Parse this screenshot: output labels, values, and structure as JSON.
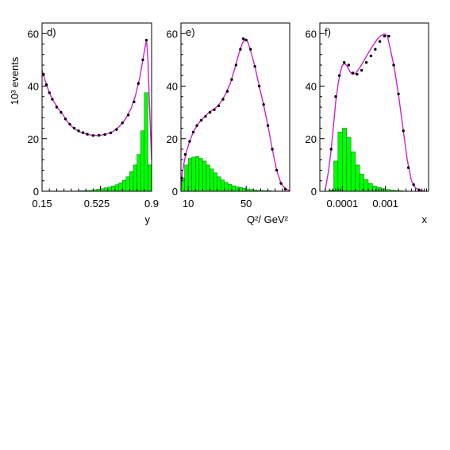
{
  "colors": {
    "curve": "#cc22cc",
    "points": "#000000",
    "histogram_fill": "#00ff00",
    "histogram_edge": "#006600",
    "axis": "#000000"
  },
  "shared_ylabel": "10³ events",
  "chart_data": [
    {
      "type": "line",
      "panel_label": "d)",
      "xlabel": "y",
      "x_scale": "linear",
      "xlim": [
        0.15,
        0.9
      ],
      "ylim": [
        0,
        64
      ],
      "xticks": [
        {
          "value": 0.15,
          "label": "0.15"
        },
        {
          "value": 0.525,
          "label": "0.525"
        },
        {
          "value": 0.9,
          "label": "0.9"
        }
      ],
      "yticks": [
        {
          "value": 0,
          "label": "0"
        },
        {
          "value": 20,
          "label": "20"
        },
        {
          "value": 40,
          "label": "40"
        },
        {
          "value": 60,
          "label": "60"
        }
      ],
      "series": [
        {
          "kind": "points",
          "x": [
            0.16,
            0.18,
            0.2,
            0.22,
            0.25,
            0.28,
            0.31,
            0.34,
            0.37,
            0.4,
            0.43,
            0.46,
            0.5,
            0.54,
            0.58,
            0.62,
            0.66,
            0.7,
            0.74,
            0.78,
            0.81,
            0.84,
            0.865
          ],
          "y": [
            44.5,
            40.5,
            37.5,
            35,
            32,
            30,
            27.5,
            25.5,
            24,
            23,
            22.3,
            21.7,
            21.2,
            21.3,
            21.6,
            22.2,
            23.5,
            26,
            29,
            34,
            41,
            50,
            57.5
          ]
        },
        {
          "kind": "curve",
          "x": [
            0.15,
            0.17,
            0.19,
            0.21,
            0.23,
            0.26,
            0.29,
            0.32,
            0.35,
            0.38,
            0.41,
            0.44,
            0.47,
            0.5,
            0.53,
            0.56,
            0.6,
            0.64,
            0.68,
            0.72,
            0.76,
            0.79,
            0.82,
            0.845,
            0.865,
            0.875,
            0.885,
            0.9
          ],
          "y": [
            46,
            42.3,
            39,
            36.3,
            34.2,
            31.5,
            29.3,
            26.8,
            24.8,
            23.5,
            22.6,
            22.0,
            21.5,
            21.3,
            21.2,
            21.4,
            21.9,
            22.9,
            24.7,
            27.4,
            31.5,
            36.5,
            43.5,
            51.5,
            57.8,
            50,
            34,
            12
          ]
        },
        {
          "kind": "histogram",
          "bin_edges": [
            0.15,
            0.175,
            0.2,
            0.225,
            0.25,
            0.275,
            0.3,
            0.325,
            0.35,
            0.375,
            0.4,
            0.425,
            0.45,
            0.475,
            0.5,
            0.525,
            0.55,
            0.575,
            0.6,
            0.625,
            0.65,
            0.675,
            0.7,
            0.725,
            0.75,
            0.775,
            0.8,
            0.825,
            0.85,
            0.875,
            0.9
          ],
          "values": [
            0.1,
            0.1,
            0.1,
            0.1,
            0.1,
            0.1,
            0.1,
            0.1,
            0.1,
            0.1,
            0.2,
            0.2,
            0.3,
            0.4,
            0.6,
            0.8,
            1,
            1.3,
            1.6,
            2,
            2.5,
            3.2,
            4.2,
            5.5,
            7.5,
            10,
            14,
            23,
            37.5,
            10
          ]
        }
      ]
    },
    {
      "type": "line",
      "panel_label": "e)",
      "xlabel": "Q²/ GeV²",
      "x_scale": "linear",
      "xlim": [
        5,
        80
      ],
      "ylim": [
        0,
        64
      ],
      "xticks": [
        {
          "value": 10,
          "label": "10"
        },
        {
          "value": 50,
          "label": "50"
        }
      ],
      "yticks": [
        {
          "value": 0,
          "label": "0"
        },
        {
          "value": 20,
          "label": "20"
        },
        {
          "value": 40,
          "label": "40"
        },
        {
          "value": 60,
          "label": "60"
        }
      ],
      "series": [
        {
          "kind": "points",
          "x": [
            5.5,
            8,
            11,
            13.5,
            16,
            19,
            22,
            25,
            28,
            31,
            34,
            37,
            40,
            43,
            46,
            48,
            50,
            53,
            56,
            59,
            62,
            65,
            68,
            71,
            74,
            77
          ],
          "y": [
            5,
            14,
            19,
            22.5,
            25,
            27,
            28.5,
            30,
            31,
            32.5,
            35,
            38,
            42.5,
            48,
            54,
            58,
            57.5,
            54,
            47.5,
            40,
            33,
            25,
            16,
            8,
            3,
            0.8
          ]
        },
        {
          "kind": "curve",
          "x": [
            5,
            6,
            7.5,
            9,
            11,
            13,
            15,
            18,
            21,
            24,
            27,
            30,
            33,
            36,
            39,
            42,
            45,
            47.5,
            49.5,
            51,
            53,
            56,
            59,
            62,
            65,
            68,
            71,
            74,
            77,
            80
          ],
          "y": [
            1,
            7,
            12,
            15.5,
            19,
            21.8,
            24,
            26.5,
            28.2,
            29.8,
            31,
            32.2,
            34.3,
            37.2,
            41,
            46.5,
            52.5,
            56.5,
            58,
            57,
            53.5,
            47.5,
            40,
            33,
            25,
            16,
            8,
            3,
            1,
            0.2
          ]
        },
        {
          "kind": "histogram",
          "bin_edges": [
            5,
            7.5,
            10,
            12.5,
            15,
            17.5,
            20,
            22.5,
            25,
            27.5,
            30,
            32.5,
            35,
            37.5,
            40,
            42.5,
            45,
            47.5,
            50,
            52.5,
            55,
            57.5,
            60,
            62.5,
            65,
            67.5,
            70,
            72.5,
            75,
            77.5,
            80
          ],
          "values": [
            5,
            10,
            12.5,
            13,
            13.2,
            12.5,
            11.5,
            10,
            8.5,
            7,
            5.5,
            4.3,
            3.4,
            2.7,
            2.1,
            1.7,
            1.4,
            1.1,
            0.9,
            0.7,
            0.5,
            0.4,
            0.3,
            0.2,
            0.2,
            0.1,
            0.1,
            0.1,
            0.05,
            0.05
          ]
        }
      ]
    },
    {
      "type": "line",
      "panel_label": "f)",
      "xlabel": "x",
      "x_scale": "log",
      "xlim": [
        3e-05,
        0.01
      ],
      "ylim": [
        0,
        64
      ],
      "xticks": [
        {
          "value": 0.0001,
          "label": "0.0001"
        },
        {
          "value": 0.001,
          "label": "0.001"
        }
      ],
      "yticks": [
        {
          "value": 0,
          "label": "0"
        },
        {
          "value": 20,
          "label": "20"
        },
        {
          "value": 40,
          "label": "40"
        },
        {
          "value": 60,
          "label": "60"
        }
      ],
      "series": [
        {
          "kind": "points",
          "x": [
            5.5e-05,
            7e-05,
            8.5e-05,
            0.00011,
            0.00014,
            0.000175,
            0.00022,
            0.00028,
            0.00036,
            0.00046,
            0.00058,
            0.00074,
            0.00095,
            0.0012,
            0.00155,
            0.002,
            0.0026,
            0.0034,
            0.0045,
            0.006
          ],
          "y": [
            16,
            36,
            44,
            49,
            48,
            45,
            44.5,
            46,
            49,
            51.5,
            54,
            57,
            59,
            59,
            48,
            37,
            23,
            9,
            2.5,
            0.5
          ]
        },
        {
          "kind": "curve",
          "x": [
            4e-05,
            4.8e-05,
            5.5e-05,
            6.3e-05,
            7e-05,
            8e-05,
            9e-05,
            0.0001,
            0.000115,
            0.00013,
            0.00015,
            0.00017,
            0.0002,
            0.00023,
            0.00027,
            0.00032,
            0.00038,
            0.00045,
            0.00055,
            0.00067,
            0.0008,
            0.00095,
            0.0011,
            0.0013,
            0.0016,
            0.002,
            0.0025,
            0.0032,
            0.004,
            0.005,
            0.0065,
            0.008
          ],
          "y": [
            0.5,
            8,
            16,
            26,
            34,
            41,
            45.5,
            48,
            48.5,
            47.5,
            45.5,
            44.5,
            44.8,
            46,
            47.8,
            49.8,
            52,
            54,
            56.2,
            58.2,
            59.3,
            59.8,
            59.3,
            54,
            47,
            37,
            25,
            12,
            4,
            1.2,
            0.3,
            0.1
          ]
        },
        {
          "kind": "histogram",
          "bin_edges": [
            3e-05,
            4e-05,
            5e-05,
            6.3e-05,
            7.9e-05,
            0.0001,
            0.000126,
            0.000158,
            0.0002,
            0.000251,
            0.000316,
            0.000398,
            0.000501,
            0.000631,
            0.000794,
            0.001,
            0.00126,
            0.00158,
            0.002,
            0.00251,
            0.00316,
            0.00398,
            0.00501,
            0.00631,
            0.00794,
            0.01
          ],
          "values": [
            0,
            0,
            0.5,
            11.5,
            22.5,
            24,
            20.5,
            15,
            10,
            6.5,
            4.5,
            3,
            2,
            1.5,
            1,
            0.7,
            0.5,
            0.3,
            0.2,
            0.1,
            0.1,
            0.05,
            0,
            0,
            0
          ]
        }
      ]
    }
  ]
}
